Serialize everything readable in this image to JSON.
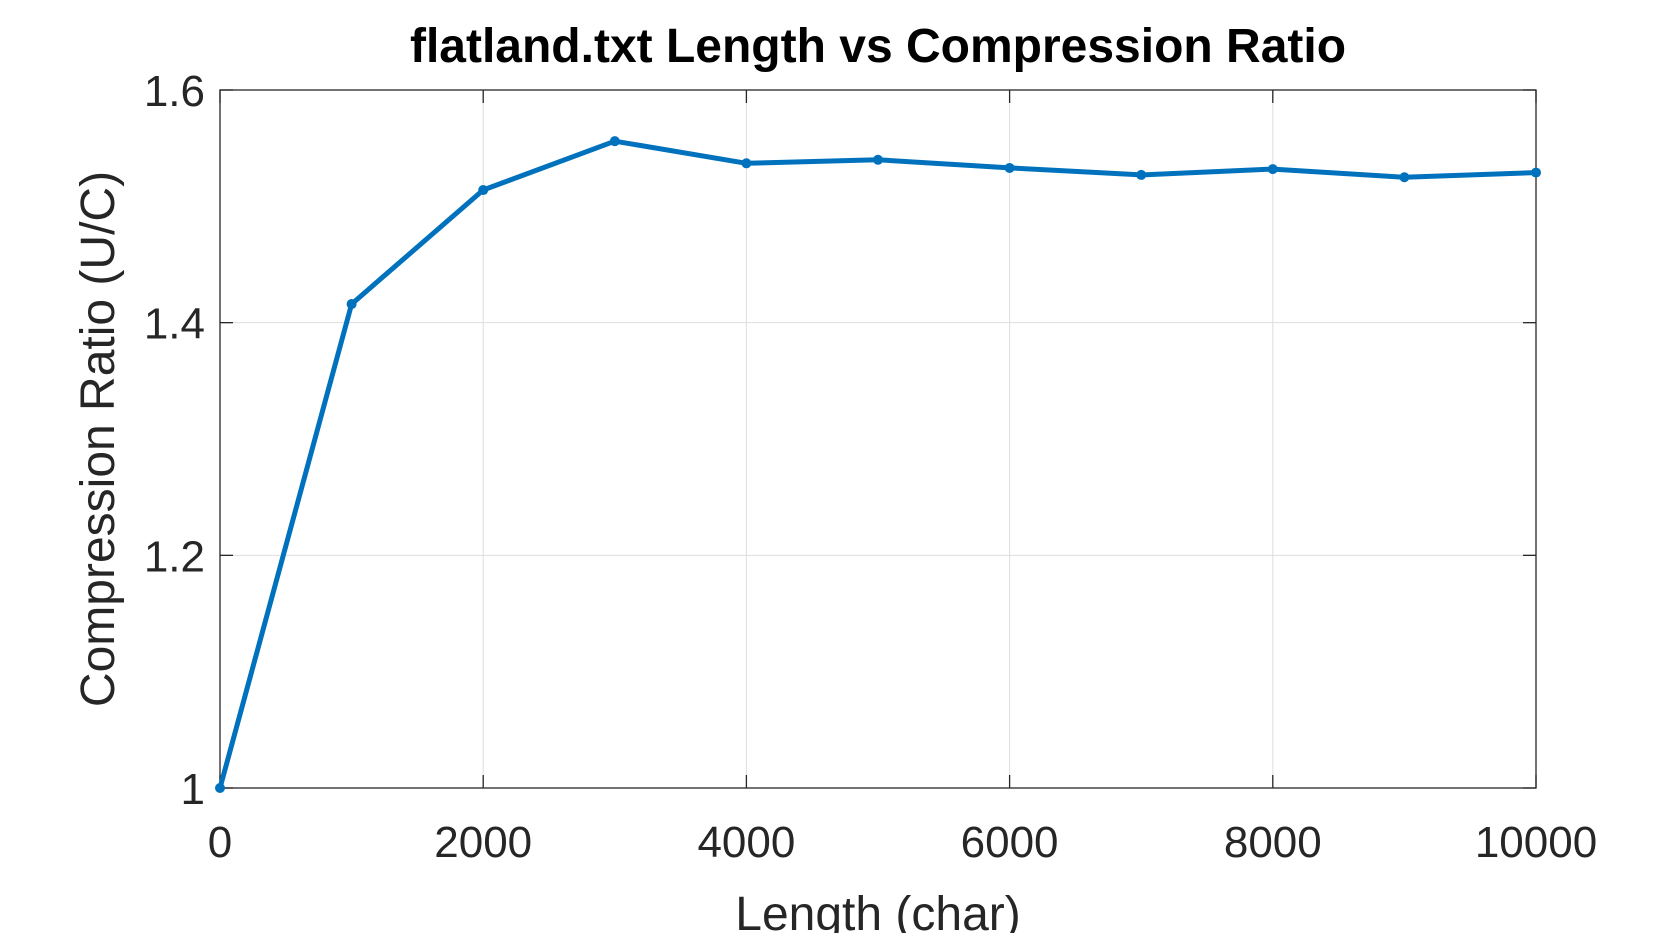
{
  "chart_data": {
    "type": "line",
    "title": "flatland.txt Length vs Compression Ratio",
    "xlabel": "Length (char)",
    "ylabel": "Compression Ratio (U/C)",
    "xlim": [
      0,
      10000
    ],
    "ylim": [
      1,
      1.6
    ],
    "xticks": [
      0,
      2000,
      4000,
      6000,
      8000,
      10000
    ],
    "xtick_labels": [
      "0",
      "2000",
      "4000",
      "6000",
      "8000",
      "10000"
    ],
    "yticks": [
      1,
      1.2,
      1.4,
      1.6
    ],
    "ytick_labels": [
      "1",
      "1.2",
      "1.4",
      "1.6"
    ],
    "grid": true,
    "legend": "none",
    "series": [
      {
        "color": "#0072bd",
        "x": [
          0,
          1000,
          2000,
          3000,
          4000,
          5000,
          6000,
          7000,
          8000,
          9000,
          10000
        ],
        "y": [
          1.0,
          1.416,
          1.514,
          1.556,
          1.537,
          1.54,
          1.533,
          1.527,
          1.532,
          1.525,
          1.529
        ]
      }
    ]
  }
}
